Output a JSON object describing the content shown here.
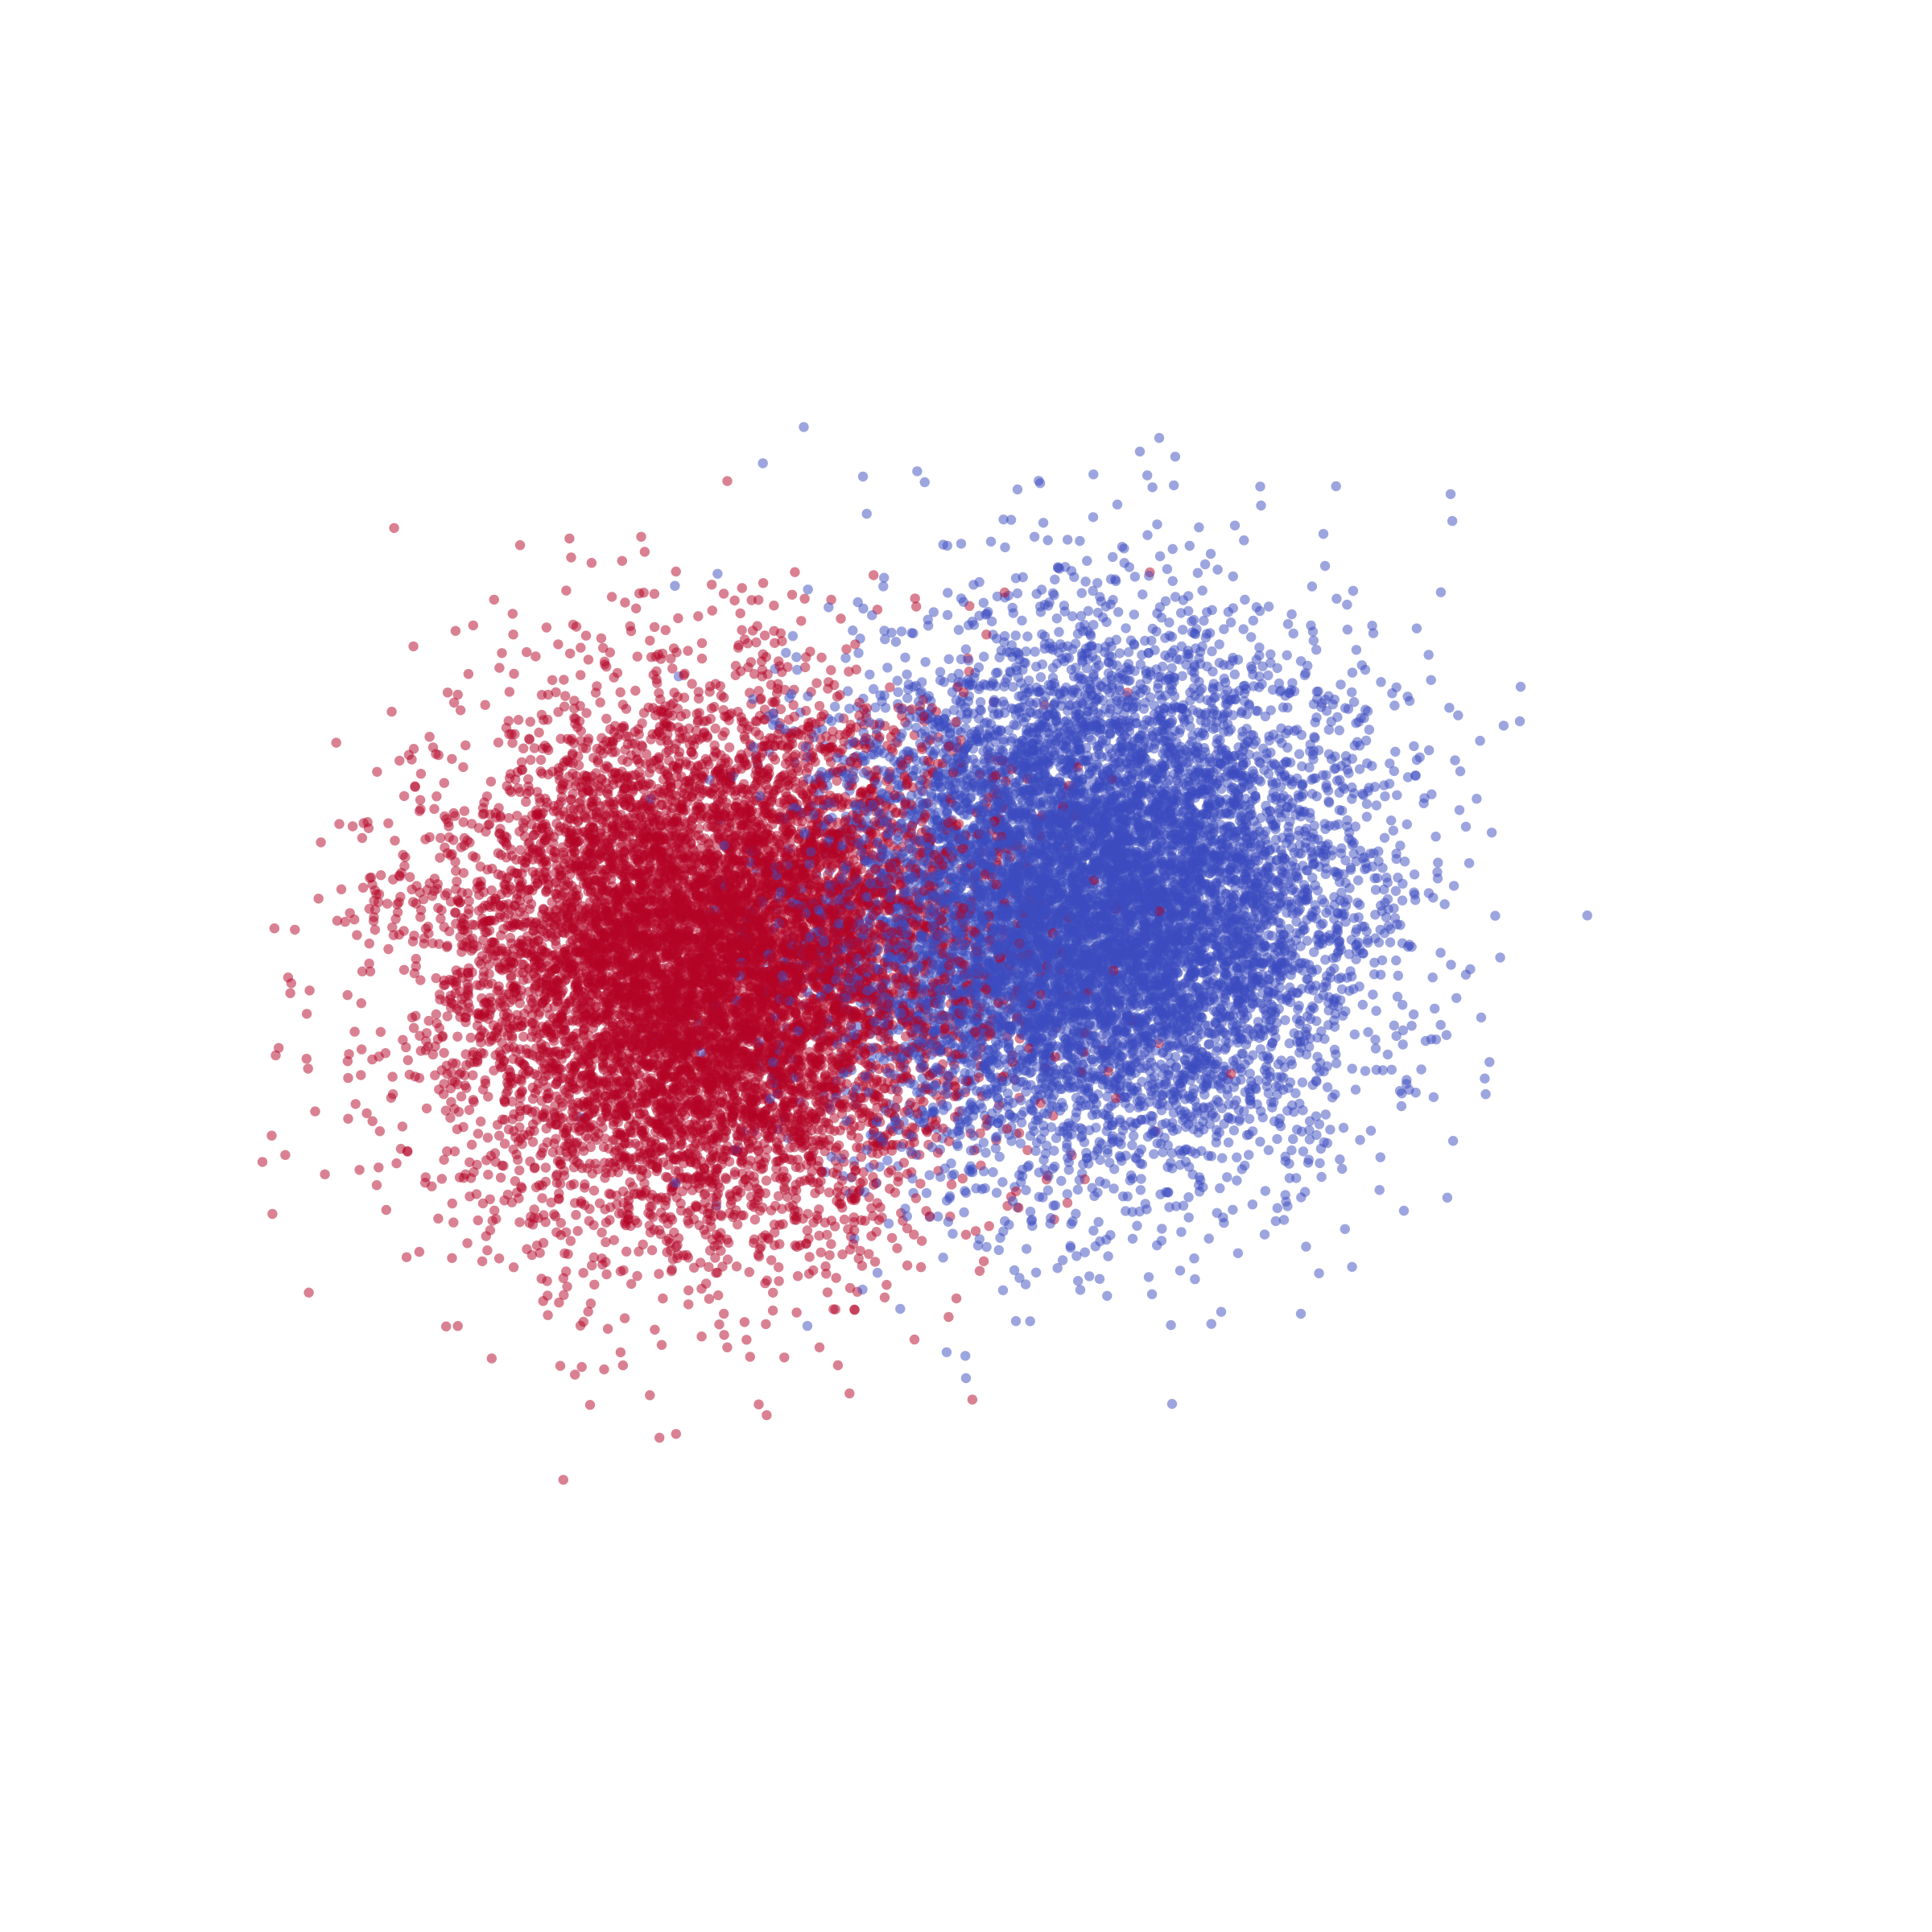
{
  "chart_data": {
    "type": "scatter",
    "title": "",
    "xlabel": "",
    "ylabel": "",
    "axes_visible": false,
    "grid": false,
    "legend": "none",
    "xlim": [
      -5.5,
      5.5
    ],
    "ylim": [
      -5.5,
      5.5
    ],
    "marker_alpha": 0.5,
    "series": [
      {
        "color": "#b40426",
        "points_per_cloud": 10000,
        "center": [
          -2.0,
          0.0
        ],
        "std": [
          1.0,
          1.0
        ],
        "sample_points": [
          [
            -4.3,
            -0.4
          ],
          [
            -4.0,
            0.5
          ],
          [
            -3.7,
            1.1
          ],
          [
            -3.3,
            1.6
          ],
          [
            -3.0,
            1.9
          ],
          [
            -2.6,
            2.6
          ],
          [
            -1.9,
            2.1
          ],
          [
            -1.3,
            1.8
          ],
          [
            -2.4,
            -1.2
          ],
          [
            -1.6,
            -1.9
          ],
          [
            -0.9,
            -2.5
          ],
          [
            -0.4,
            -2.9
          ],
          [
            0.3,
            2.9
          ],
          [
            0.8,
            1.4
          ],
          [
            1.5,
            -0.6
          ]
        ]
      },
      {
        "color": "#3b4cc0",
        "points_per_cloud": 10000,
        "center": [
          1.0,
          0.5
        ],
        "std": [
          1.0,
          1.0
        ],
        "sample_points": [
          [
            -0.8,
            3.8
          ],
          [
            0.4,
            3.7
          ],
          [
            1.5,
            4.1
          ],
          [
            1.9,
            3.2
          ],
          [
            3.1,
            2.3
          ],
          [
            3.5,
            1.6
          ],
          [
            4.3,
            1.9
          ],
          [
            4.0,
            -0.4
          ],
          [
            3.4,
            -1.9
          ],
          [
            2.6,
            -2.7
          ],
          [
            1.6,
            -3.4
          ],
          [
            0.0,
            -3.2
          ],
          [
            -0.6,
            -2.0
          ],
          [
            -0.4,
            1.0
          ],
          [
            2.2,
            -0.5
          ]
        ]
      }
    ]
  }
}
